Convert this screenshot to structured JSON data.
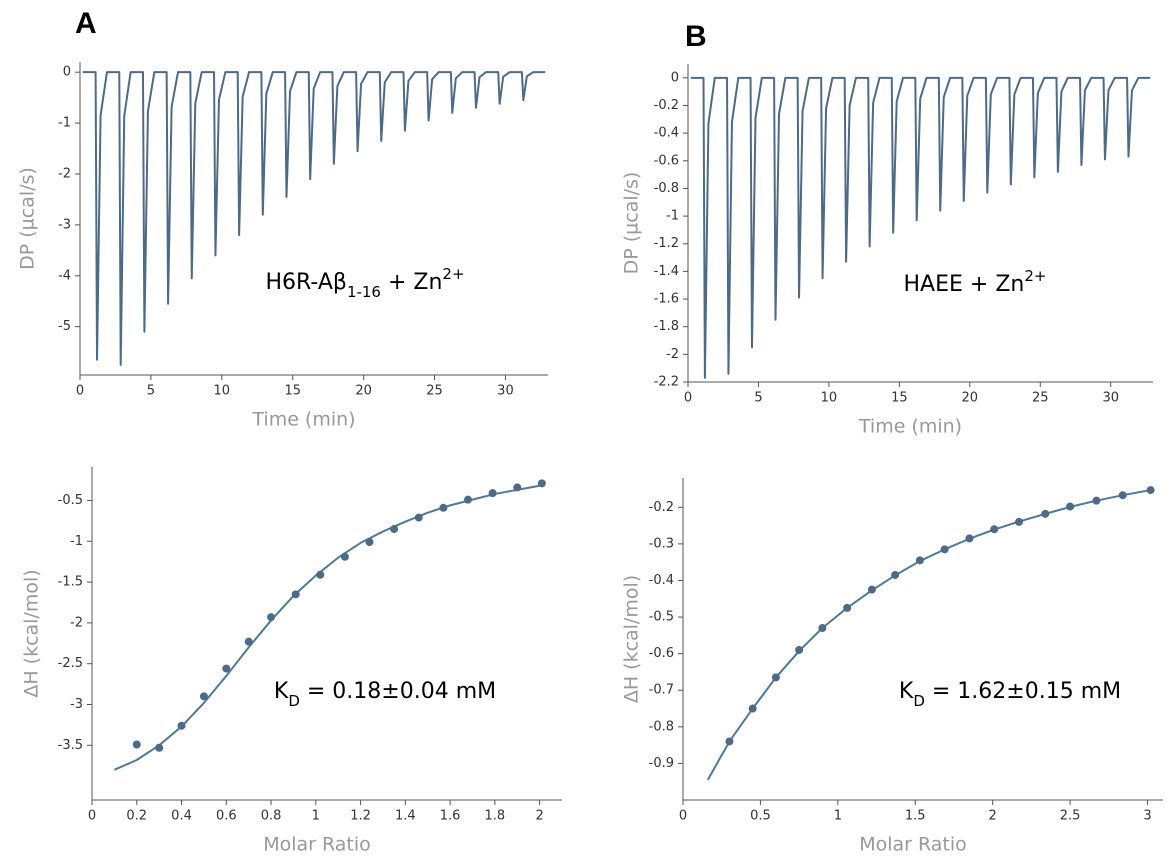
{
  "chart_data": [
    {
      "type": "line",
      "panel_label": "A",
      "xlabel": "Time (min)",
      "ylabel": "DP (µcal/s)",
      "annotation": [
        {
          "text": "H6R-Aβ"
        },
        {
          "text": "1-16",
          "baseline": "sub"
        },
        {
          "text": " + Zn"
        },
        {
          "text": "2+",
          "baseline": "super"
        }
      ],
      "xlim": [
        0,
        33
      ],
      "xticks": [
        0,
        5,
        10,
        15,
        20,
        25,
        30
      ],
      "ylim": [
        -5.95,
        0.2
      ],
      "yticks": [
        0,
        -1,
        -2,
        -3,
        -4,
        -5
      ],
      "series": [
        {
          "color": "#4f6a86",
          "x": [
            0.2,
            1.1,
            1.2,
            1.45,
            1.9,
            2.77,
            2.87,
            3.12,
            3.57,
            4.44,
            4.54,
            4.79,
            5.24,
            6.11,
            6.21,
            6.46,
            6.91,
            7.78,
            7.88,
            8.13,
            8.58,
            9.45,
            9.55,
            9.8,
            10.25,
            11.12,
            11.22,
            11.47,
            11.92,
            12.79,
            12.89,
            13.14,
            13.59,
            14.46,
            14.56,
            14.81,
            15.26,
            16.13,
            16.23,
            16.48,
            16.93,
            17.8,
            17.9,
            18.15,
            18.6,
            19.47,
            19.57,
            19.82,
            20.27,
            21.14,
            21.24,
            21.49,
            21.94,
            22.81,
            22.91,
            23.16,
            23.61,
            24.48,
            24.58,
            24.83,
            25.28,
            26.15,
            26.25,
            26.5,
            26.95,
            27.82,
            27.92,
            28.17,
            28.62,
            29.49,
            29.59,
            29.84,
            30.29,
            31.16,
            31.26,
            31.51,
            31.96,
            32.8
          ],
          "values": [
            0,
            0,
            -5.65,
            -0.85,
            0,
            0,
            -5.75,
            -0.86,
            0,
            0,
            -5.1,
            -0.77,
            0,
            0,
            -4.55,
            -0.68,
            0,
            0,
            -4.05,
            -0.61,
            0,
            0,
            -3.6,
            -0.54,
            0,
            0,
            -3.2,
            -0.48,
            0,
            0,
            -2.8,
            -0.42,
            0,
            0,
            -2.45,
            -0.37,
            0,
            0,
            -2.1,
            -0.32,
            0,
            0,
            -1.8,
            -0.27,
            0,
            0,
            -1.55,
            -0.23,
            0,
            0,
            -1.35,
            -0.2,
            0,
            0,
            -1.15,
            -0.17,
            0,
            0,
            -0.95,
            -0.14,
            0,
            0,
            -0.8,
            -0.12,
            0,
            0,
            -0.7,
            -0.1,
            0,
            0,
            -0.62,
            -0.09,
            0,
            0,
            -0.55,
            -0.08,
            0,
            0
          ]
        }
      ]
    },
    {
      "type": "line",
      "panel_label": "B",
      "xlabel": "Time (min)",
      "ylabel": "DP (µcal/s)",
      "annotation": [
        {
          "text": "HAEE + Zn"
        },
        {
          "text": "2+",
          "baseline": "super"
        }
      ],
      "xlim": [
        0,
        33
      ],
      "xticks": [
        0,
        5,
        10,
        15,
        20,
        25,
        30
      ],
      "ylim": [
        -2.2,
        0.1
      ],
      "yticks": [
        0,
        -0.2,
        -0.4,
        -0.6,
        -0.8,
        -1,
        -1.2,
        -1.4,
        -1.6,
        -1.8,
        -2,
        -2.2
      ],
      "series": [
        {
          "color": "#4f6a86",
          "x": [
            0.2,
            1.1,
            1.2,
            1.45,
            1.9,
            2.77,
            2.87,
            3.12,
            3.57,
            4.44,
            4.54,
            4.79,
            5.24,
            6.11,
            6.21,
            6.46,
            6.91,
            7.78,
            7.88,
            8.13,
            8.58,
            9.45,
            9.55,
            9.8,
            10.25,
            11.12,
            11.22,
            11.47,
            11.92,
            12.79,
            12.89,
            13.14,
            13.59,
            14.46,
            14.56,
            14.81,
            15.26,
            16.13,
            16.23,
            16.48,
            16.93,
            17.8,
            17.9,
            18.15,
            18.6,
            19.47,
            19.57,
            19.82,
            20.27,
            21.14,
            21.24,
            21.49,
            21.94,
            22.81,
            22.91,
            23.16,
            23.61,
            24.48,
            24.58,
            24.83,
            25.28,
            26.15,
            26.25,
            26.5,
            26.95,
            27.82,
            27.92,
            28.17,
            28.62,
            29.49,
            29.59,
            29.84,
            30.29,
            31.16,
            31.26,
            31.51,
            31.96,
            32.8
          ],
          "values": [
            0,
            0,
            -2.17,
            -0.33,
            0,
            0,
            -2.14,
            -0.32,
            0,
            0,
            -1.95,
            -0.29,
            0,
            0,
            -1.75,
            -0.26,
            0,
            0,
            -1.59,
            -0.24,
            0,
            0,
            -1.45,
            -0.22,
            0,
            0,
            -1.33,
            -0.2,
            0,
            0,
            -1.22,
            -0.18,
            0,
            0,
            -1.12,
            -0.17,
            0,
            0,
            -1.03,
            -0.15,
            0,
            0,
            -0.96,
            -0.14,
            0,
            0,
            -0.89,
            -0.13,
            0,
            0,
            -0.83,
            -0.12,
            0,
            0,
            -0.77,
            -0.12,
            0,
            0,
            -0.72,
            -0.11,
            0,
            0,
            -0.68,
            -0.1,
            0,
            0,
            -0.63,
            -0.09,
            0,
            0,
            -0.59,
            -0.09,
            0,
            0,
            -0.57,
            -0.09,
            0,
            0
          ]
        }
      ]
    },
    {
      "type": "scatter",
      "xlabel": "Molar Ratio",
      "ylabel": "ΔH (kcal/mol)",
      "annotation": [
        {
          "text": "K"
        },
        {
          "text": "D",
          "baseline": "sub"
        },
        {
          "text": " = 0.18±0.04 mM"
        }
      ],
      "xlim": [
        0,
        2.1
      ],
      "xticks": [
        0,
        0.2,
        0.4,
        0.6,
        0.8,
        1,
        1.2,
        1.4,
        1.6,
        1.8,
        2
      ],
      "ylim": [
        -4.17,
        -0.09
      ],
      "yticks": [
        -3.5,
        -3,
        -2.5,
        -2,
        -1.5,
        -1,
        -0.5
      ],
      "series": [
        {
          "mode": "line",
          "color": "#4f7a93",
          "x": [
            0.1,
            0.2,
            0.3,
            0.4,
            0.5,
            0.6,
            0.7,
            0.8,
            0.9,
            1.0,
            1.1,
            1.2,
            1.3,
            1.4,
            1.5,
            1.6,
            1.7,
            1.8,
            1.9,
            2.0
          ],
          "values": [
            -3.8,
            -3.68,
            -3.5,
            -3.27,
            -2.98,
            -2.65,
            -2.3,
            -1.97,
            -1.67,
            -1.42,
            -1.2,
            -1.02,
            -0.88,
            -0.76,
            -0.65,
            -0.56,
            -0.49,
            -0.42,
            -0.37,
            -0.32
          ]
        },
        {
          "mode": "markers",
          "color": "#4f6a86",
          "x": [
            0.2,
            0.3,
            0.4,
            0.5,
            0.6,
            0.7,
            0.8,
            0.91,
            1.02,
            1.13,
            1.24,
            1.35,
            1.46,
            1.57,
            1.68,
            1.79,
            1.9,
            2.01
          ],
          "values": [
            -3.49,
            -3.53,
            -3.26,
            -2.9,
            -2.56,
            -2.23,
            -1.93,
            -1.65,
            -1.41,
            -1.19,
            -1.01,
            -0.85,
            -0.71,
            -0.59,
            -0.49,
            -0.41,
            -0.34,
            -0.29
          ]
        }
      ]
    },
    {
      "type": "scatter",
      "xlabel": "Molar Ratio",
      "ylabel": "ΔH (kcal/mol)",
      "annotation": [
        {
          "text": "K"
        },
        {
          "text": "D",
          "baseline": "sub"
        },
        {
          "text": " = 1.62±0.15 mM"
        }
      ],
      "xlim": [
        0,
        3.1
      ],
      "xticks": [
        0,
        0.5,
        1,
        1.5,
        2,
        2.5,
        3
      ],
      "ylim": [
        -1.0,
        -0.12
      ],
      "yticks": [
        -0.9,
        -0.8,
        -0.7,
        -0.6,
        -0.5,
        -0.4,
        -0.3,
        -0.2
      ],
      "series": [
        {
          "mode": "line",
          "color": "#4f7a93",
          "x": [
            0.16,
            0.3,
            0.45,
            0.6,
            0.75,
            0.9,
            1.06,
            1.22,
            1.37,
            1.53,
            1.69,
            1.85,
            2.01,
            2.17,
            2.34,
            2.5,
            2.67,
            2.84,
            3.02
          ],
          "values": [
            -0.945,
            -0.84,
            -0.75,
            -0.665,
            -0.593,
            -0.53,
            -0.475,
            -0.427,
            -0.386,
            -0.347,
            -0.315,
            -0.286,
            -0.261,
            -0.239,
            -0.218,
            -0.199,
            -0.182,
            -0.167,
            -0.153
          ]
        },
        {
          "mode": "markers",
          "color": "#4f6a86",
          "x": [
            0.3,
            0.45,
            0.6,
            0.75,
            0.9,
            1.06,
            1.22,
            1.37,
            1.53,
            1.69,
            1.85,
            2.01,
            2.17,
            2.34,
            2.5,
            2.67,
            2.84,
            3.02
          ],
          "values": [
            -0.84,
            -0.75,
            -0.665,
            -0.59,
            -0.53,
            -0.475,
            -0.425,
            -0.385,
            -0.345,
            -0.315,
            -0.285,
            -0.26,
            -0.24,
            -0.218,
            -0.198,
            -0.182,
            -0.167,
            -0.153
          ]
        }
      ]
    }
  ]
}
